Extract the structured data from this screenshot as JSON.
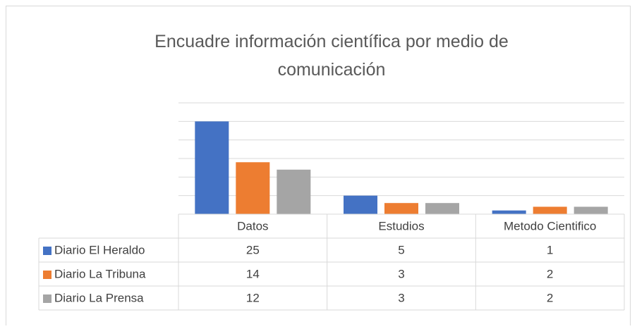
{
  "chart_data": {
    "type": "bar",
    "title": "Encuadre información científica por medio de comunicación",
    "categories": [
      "Datos",
      "Estudios",
      "Metodo Cientifico"
    ],
    "series": [
      {
        "name": "Diario El Heraldo",
        "color": "#4472c4",
        "values": [
          25,
          5,
          1
        ]
      },
      {
        "name": "Diario La Tribuna",
        "color": "#ed7d31",
        "values": [
          14,
          3,
          2
        ]
      },
      {
        "name": "Diario La Prensa",
        "color": "#a5a5a5",
        "values": [
          12,
          3,
          2
        ]
      }
    ],
    "ylim": [
      0,
      30
    ],
    "yticks": [
      0,
      5,
      10,
      15,
      20,
      25,
      30
    ],
    "grid": true
  }
}
